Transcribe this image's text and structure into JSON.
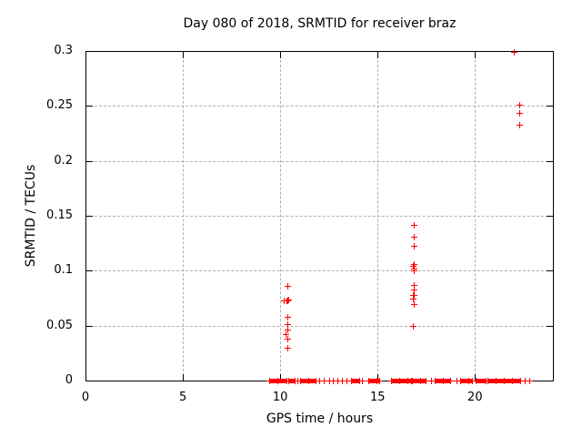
{
  "chart_data": {
    "type": "scatter",
    "title": "Day 080 of 2018, SRMTID for receiver braz",
    "xlabel": "GPS time / hours",
    "ylabel": "SRMTID / TECUs",
    "xlim": [
      0,
      24
    ],
    "ylim": [
      0,
      0.3
    ],
    "xticks": [
      0,
      5,
      10,
      15,
      20
    ],
    "xtick_labels": [
      "0",
      "5",
      "10",
      "15",
      "20"
    ],
    "yticks": [
      0,
      0.05,
      0.1,
      0.15,
      0.2,
      0.25,
      0.3
    ],
    "ytick_labels": [
      "0",
      "0.05",
      "0.1",
      "0.15",
      "0.2",
      "0.25",
      "0.3"
    ],
    "grid": true,
    "legend": "none",
    "marker": "plus",
    "colors": {
      "marker": "#ff0000",
      "grid": "#b0b0b0",
      "axis": "#000000",
      "background": "#ffffff"
    },
    "points": [
      [
        10.36,
        0.0862
      ],
      [
        10.2,
        0.0729
      ],
      [
        10.31,
        0.0733
      ],
      [
        10.36,
        0.0729
      ],
      [
        10.4,
        0.0737
      ],
      [
        10.36,
        0.0583
      ],
      [
        10.36,
        0.0516
      ],
      [
        10.36,
        0.0461
      ],
      [
        10.27,
        0.042
      ],
      [
        10.36,
        0.0379
      ],
      [
        10.36,
        0.0296
      ],
      [
        16.85,
        0.1417
      ],
      [
        16.85,
        0.1309
      ],
      [
        16.85,
        0.1226
      ],
      [
        16.85,
        0.106
      ],
      [
        16.82,
        0.1041
      ],
      [
        16.85,
        0.1022
      ],
      [
        16.87,
        0.1003
      ],
      [
        16.85,
        0.087
      ],
      [
        16.85,
        0.0829
      ],
      [
        16.81,
        0.0779
      ],
      [
        16.87,
        0.0779
      ],
      [
        16.82,
        0.0746
      ],
      [
        16.85,
        0.0696
      ],
      [
        16.81,
        0.0497
      ],
      [
        21.99,
        0.2995
      ],
      [
        22.27,
        0.2511
      ],
      [
        22.27,
        0.2436
      ],
      [
        22.27,
        0.2329
      ]
    ],
    "baseline_y": 0,
    "baseline_runs": [
      [
        9.43,
        10.32
      ],
      [
        10.41,
        10.74
      ],
      [
        10.83,
        10.92
      ],
      [
        11.02,
        11.81
      ],
      [
        11.95,
        12.04
      ],
      [
        12.18,
        12.28
      ],
      [
        12.46,
        12.56
      ],
      [
        12.7,
        12.74
      ],
      [
        12.93,
        12.98
      ],
      [
        13.12,
        13.17
      ],
      [
        13.35,
        13.45
      ],
      [
        13.63,
        14.05
      ],
      [
        14.15,
        14.28
      ],
      [
        14.52,
        15.08
      ],
      [
        15.69,
        16.71
      ],
      [
        16.76,
        17.46
      ],
      [
        17.65,
        17.79
      ],
      [
        17.93,
        18.72
      ],
      [
        18.96,
        19.1
      ],
      [
        19.23,
        19.84
      ],
      [
        20.03,
        20.54
      ],
      [
        20.63,
        22.32
      ],
      [
        22.46,
        22.6
      ],
      [
        22.78,
        22.83
      ]
    ]
  }
}
